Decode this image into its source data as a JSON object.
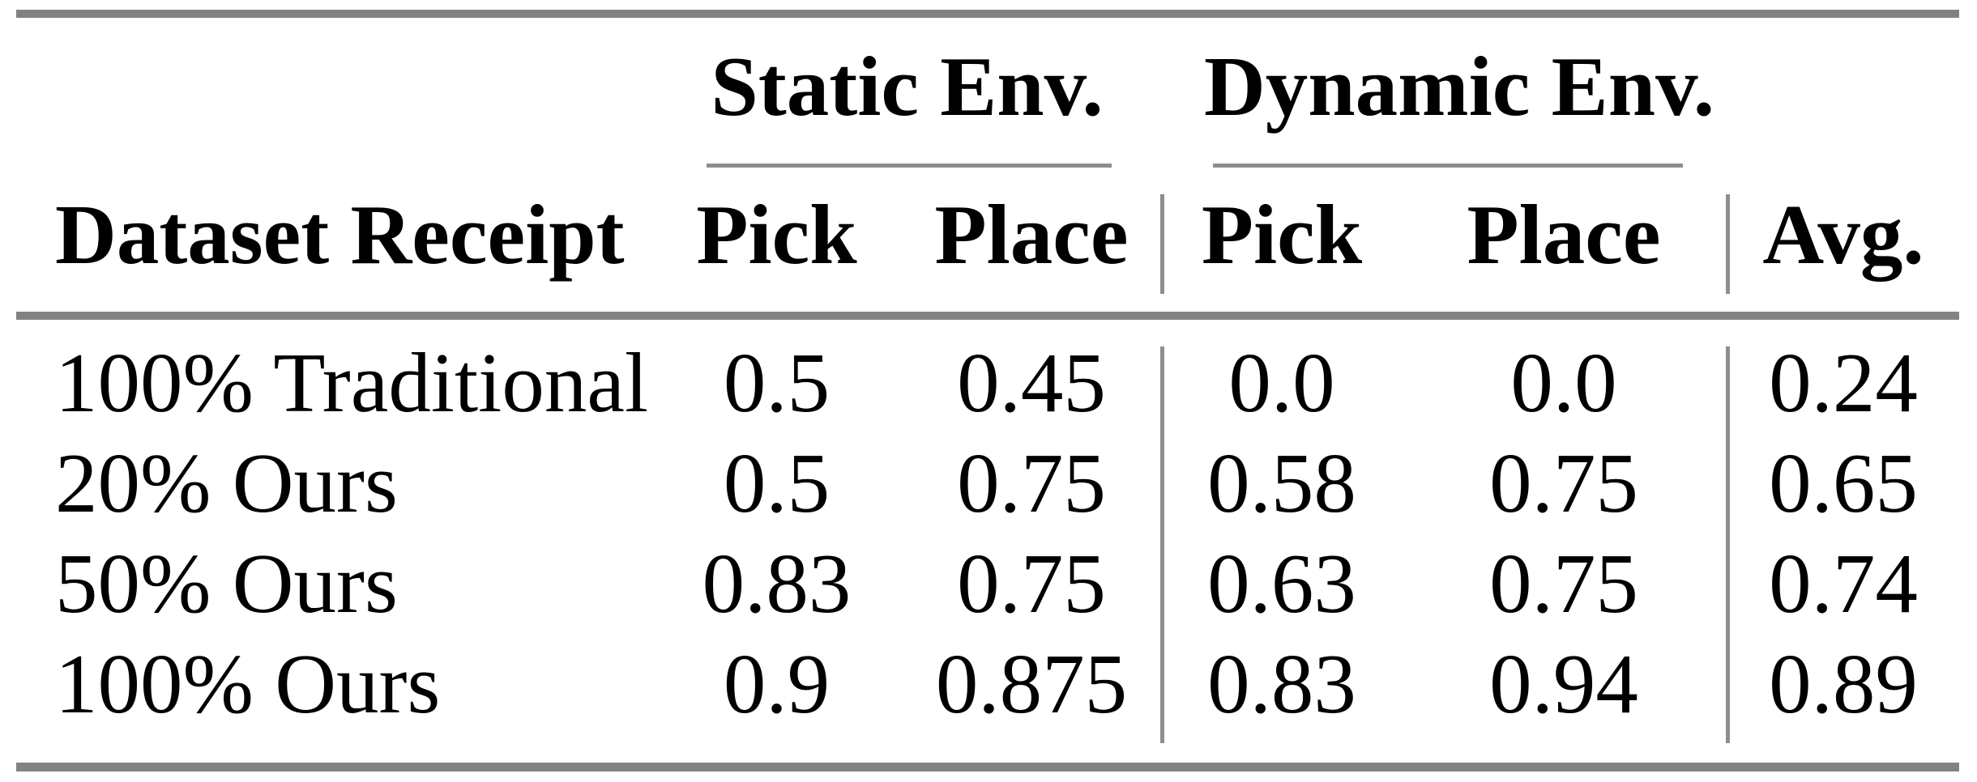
{
  "table": {
    "group_headers": [
      "Static Env.",
      "Dynamic Env."
    ],
    "column_headers": [
      "Dataset Receipt",
      "Pick",
      "Place",
      "Pick",
      "Place",
      "Avg."
    ],
    "rows": [
      {
        "label": "100% Traditional",
        "values": [
          "0.5",
          "0.45",
          "0.0",
          "0.0",
          "0.24"
        ]
      },
      {
        "label": "20% Ours",
        "values": [
          "0.5",
          "0.75",
          "0.58",
          "0.75",
          "0.65"
        ]
      },
      {
        "label": "50% Ours",
        "values": [
          "0.83",
          "0.75",
          "0.63",
          "0.75",
          "0.74"
        ]
      },
      {
        "label": "100% Ours",
        "values": [
          "0.9",
          "0.875",
          "0.83",
          "0.94",
          "0.89"
        ]
      }
    ]
  },
  "colors": {
    "text": "#000000",
    "background": "#ffffff",
    "rule_thick": "#828282",
    "rule_thin": "#8e8e8e"
  }
}
